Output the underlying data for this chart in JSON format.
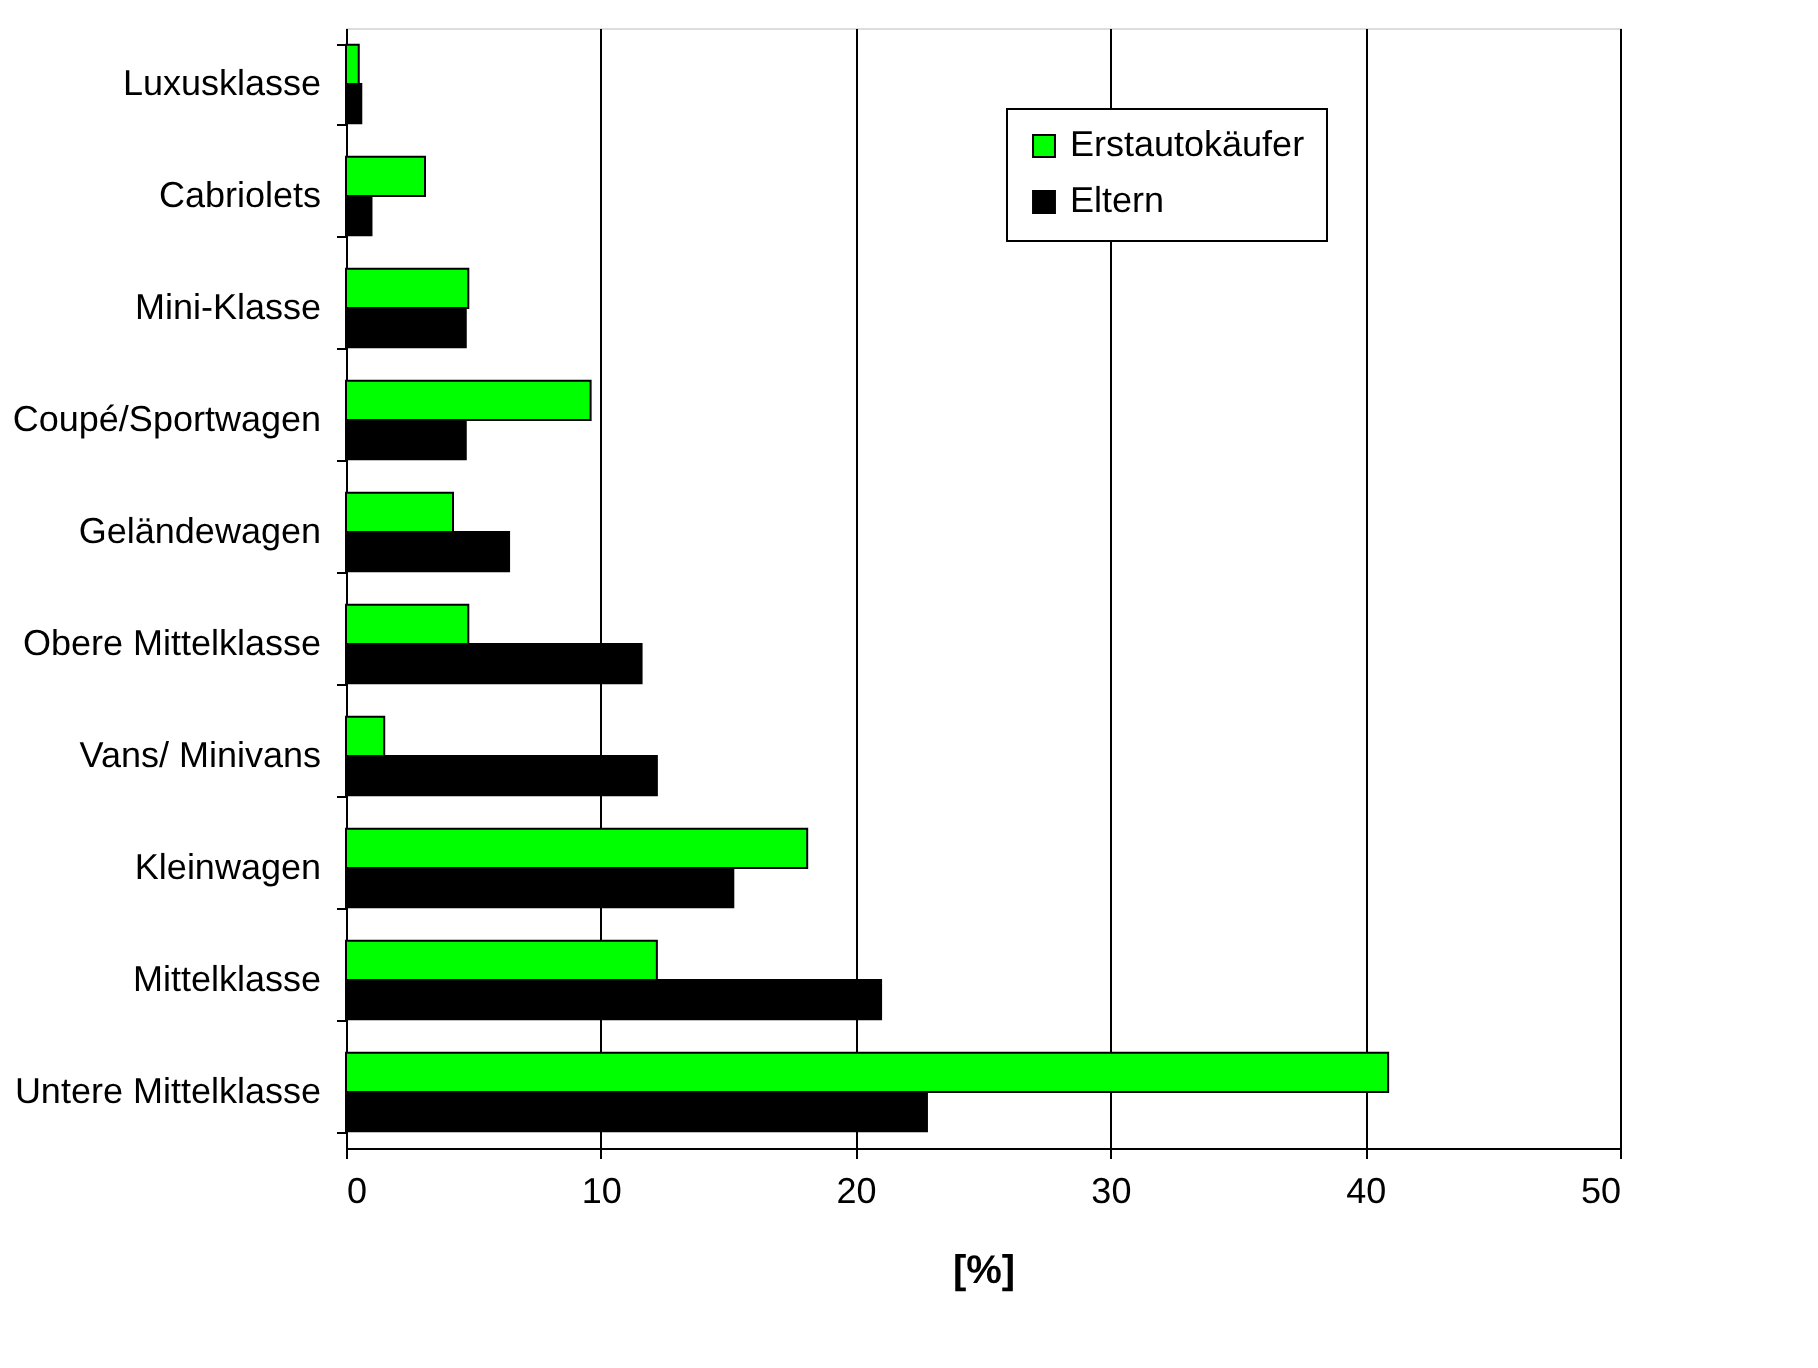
{
  "chart_data": {
    "type": "bar",
    "orientation": "horizontal",
    "xlabel": "[%]",
    "categories": [
      "Luxusklasse",
      "Cabriolets",
      "Mini-Klasse",
      "Coupé/Sportwagen",
      "Geländewagen",
      "Obere Mittelklasse",
      "Vans/ Minivans",
      "Kleinwagen",
      "Mittelklasse",
      "Untere Mittelklasse"
    ],
    "series": [
      {
        "name": "Erstautokäufer",
        "color": "#00ff00",
        "values": [
          0.5,
          3.1,
          4.8,
          9.6,
          4.2,
          4.8,
          1.5,
          18.1,
          12.2,
          40.9
        ]
      },
      {
        "name": "Eltern",
        "color": "#000000",
        "values": [
          0.6,
          1.0,
          4.7,
          4.7,
          6.4,
          11.6,
          12.2,
          15.2,
          21.0,
          22.8
        ]
      }
    ],
    "xlim": [
      0,
      50
    ],
    "xticks": [
      0,
      10,
      20,
      30,
      40,
      50
    ],
    "grid": "x",
    "legend": "top right"
  }
}
